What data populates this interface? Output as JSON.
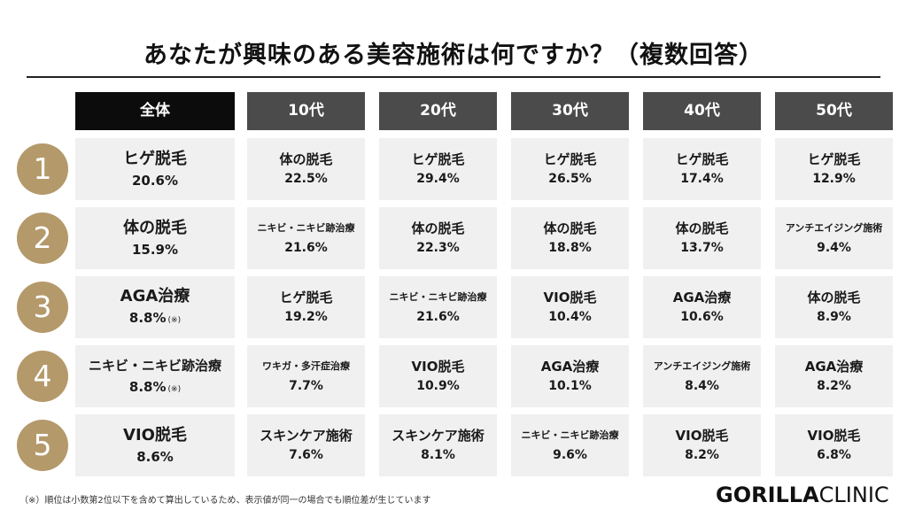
{
  "title": "あなたが興味のある美容施術は何ですか？（複数回答）",
  "headers": [
    "全体",
    "10代",
    "20代",
    "30代",
    "40代",
    "50代"
  ],
  "ranks": [
    "1",
    "2",
    "3",
    "4",
    "5"
  ],
  "rows": [
    [
      {
        "name": "ヒゲ脱毛",
        "pct": "20.6%"
      },
      {
        "name": "体の脱毛",
        "pct": "22.5%"
      },
      {
        "name": "ヒゲ脱毛",
        "pct": "29.4%"
      },
      {
        "name": "ヒゲ脱毛",
        "pct": "26.5%"
      },
      {
        "name": "ヒゲ脱毛",
        "pct": "17.4%"
      },
      {
        "name": "ヒゲ脱毛",
        "pct": "12.9%"
      }
    ],
    [
      {
        "name": "体の脱毛",
        "pct": "15.9%"
      },
      {
        "name": "ニキビ・ニキビ跡治療",
        "pct": "21.6%"
      },
      {
        "name": "体の脱毛",
        "pct": "22.3%"
      },
      {
        "name": "体の脱毛",
        "pct": "18.8%"
      },
      {
        "name": "体の脱毛",
        "pct": "13.7%"
      },
      {
        "name": "アンチエイジング施術",
        "pct": "9.4%"
      }
    ],
    [
      {
        "name": "AGA治療",
        "pct": "8.8%",
        "note": "(※)"
      },
      {
        "name": "ヒゲ脱毛",
        "pct": "19.2%"
      },
      {
        "name": "ニキビ・ニキビ跡治療",
        "pct": "21.6%"
      },
      {
        "name": "VIO脱毛",
        "pct": "10.4%"
      },
      {
        "name": "AGA治療",
        "pct": "10.6%"
      },
      {
        "name": "体の脱毛",
        "pct": "8.9%"
      }
    ],
    [
      {
        "name": "ニキビ・ニキビ跡治療",
        "pct": "8.8%",
        "note": "(※)"
      },
      {
        "name": "ワキガ・多汗症治療",
        "pct": "7.7%"
      },
      {
        "name": "VIO脱毛",
        "pct": "10.9%"
      },
      {
        "name": "AGA治療",
        "pct": "10.1%"
      },
      {
        "name": "アンチエイジング施術",
        "pct": "8.4%"
      },
      {
        "name": "AGA治療",
        "pct": "8.2%"
      }
    ],
    [
      {
        "name": "VIO脱毛",
        "pct": "8.6%"
      },
      {
        "name": "スキンケア施術",
        "pct": "7.6%"
      },
      {
        "name": "スキンケア施術",
        "pct": "8.1%"
      },
      {
        "name": "ニキビ・ニキビ跡治療",
        "pct": "9.6%"
      },
      {
        "name": "VIO脱毛",
        "pct": "8.2%"
      },
      {
        "name": "VIO脱毛",
        "pct": "6.8%"
      }
    ]
  ],
  "footnote": "（※）順位は小数第2位以下を含めて算出しているため、表示値が同一の場合でも順位差が生じています",
  "logo": {
    "bold": "GORILLA",
    "thin": "CLINIC"
  },
  "colors": {
    "header_all": "#0c0c0c",
    "header_age": "#4b4b4b",
    "rank_circle": "#b4996a",
    "cell_bg": "#f0f0f0"
  }
}
